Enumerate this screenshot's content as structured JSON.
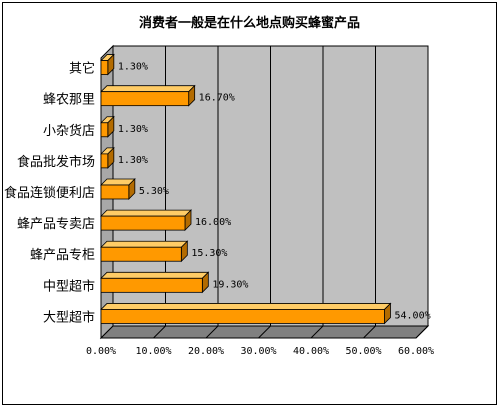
{
  "chart_data": {
    "type": "bar",
    "orientation": "horizontal",
    "title": "消费者一般是在什么地点购买蜂蜜产品",
    "categories": [
      "其它",
      "蜂农那里",
      "小杂货店",
      "食品批发市场",
      "食品连锁便利店",
      "蜂产品专卖店",
      "蜂产品专柜",
      "中型超市",
      "大型超市"
    ],
    "values": [
      1.3,
      16.7,
      1.3,
      1.3,
      5.3,
      16.0,
      15.3,
      19.3,
      54.0
    ],
    "data_labels": [
      "1.30%",
      "16.70%",
      "1.30%",
      "1.30%",
      "5.30%",
      "16.00%",
      "15.30%",
      "19.30%",
      "54.00%"
    ],
    "x_ticks": [
      "0.00%",
      "10.00%",
      "20.00%",
      "30.00%",
      "40.00%",
      "50.00%",
      "60.00%"
    ],
    "xlim": [
      0,
      60
    ],
    "grid": true,
    "colors": {
      "bar_front": "#ff9900",
      "bar_top": "#ffcc66",
      "bar_side": "#b36b00",
      "plot_bg": "#c0c0c0",
      "grid": "#000000"
    }
  }
}
